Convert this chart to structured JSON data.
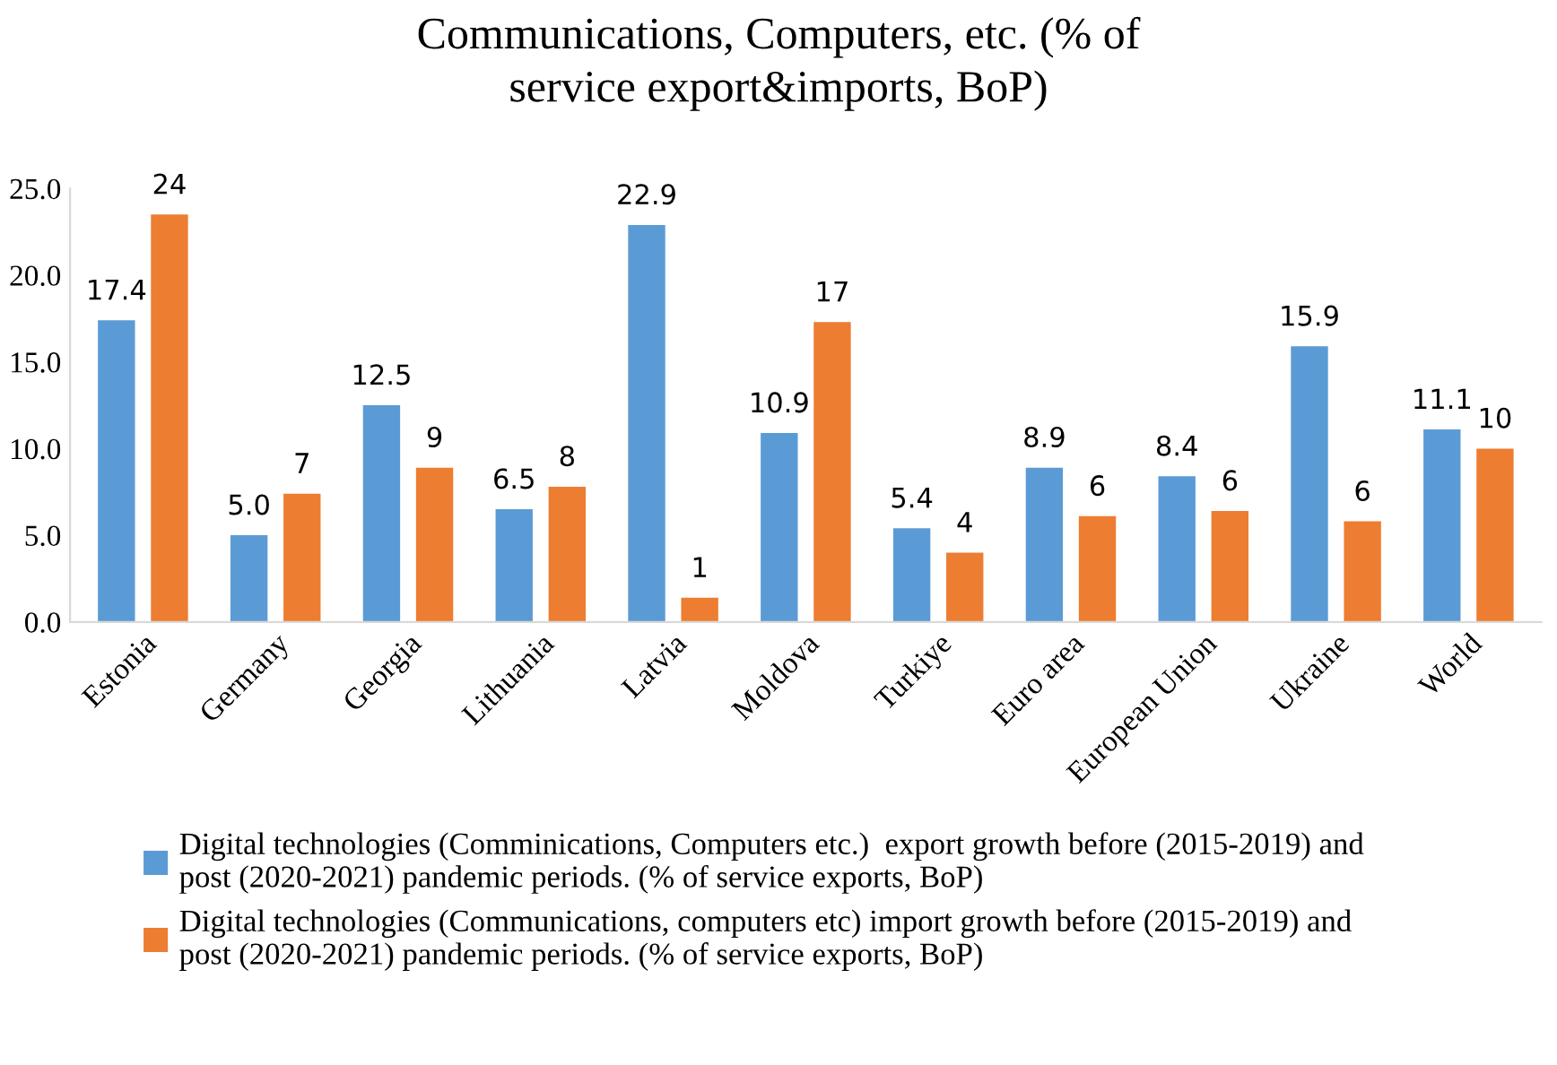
{
  "chart_data": {
    "type": "bar",
    "title": "Communications, Computers, etc. (% of service export&imports, BoP)",
    "categories": [
      "Estonia",
      "Germany",
      "Georgia",
      "Lithuania",
      "Latvia",
      "Moldova",
      "Turkiye",
      "Euro area",
      "European Union",
      "Ukraine",
      "World"
    ],
    "series": [
      {
        "name": "Digital technologies (Comminications, Computers etc.)  export growth before (2015-2019) and post (2020-2021) pandemic periods. (% of service exports, BoP)",
        "color": "#5b9bd5",
        "values": [
          17.4,
          5.0,
          12.5,
          6.5,
          22.9,
          10.9,
          5.4,
          8.9,
          8.4,
          15.9,
          11.1
        ],
        "value_labels": [
          "17.4",
          "5.0",
          "12.5",
          "6.5",
          "22.9",
          "10.9",
          "5.4",
          "8.9",
          "8.4",
          "15.9",
          "11.1"
        ]
      },
      {
        "name": "Digital technologies (Communications, computers etc) import growth before (2015-2019) and post (2020-2021) pandemic periods. (% of service exports, BoP)",
        "color": "#ed7d31",
        "values": [
          23.5,
          7.4,
          8.9,
          7.8,
          1.4,
          17.3,
          4.0,
          6.1,
          6.4,
          5.8,
          10.0
        ],
        "value_labels": [
          "24",
          "7",
          "9",
          "8",
          "1",
          "17",
          "4",
          "6",
          "6",
          "6",
          "10"
        ]
      }
    ],
    "ylim": [
      0,
      25
    ],
    "yticks": [
      {
        "value": 0,
        "label": "0.0"
      },
      {
        "value": 5,
        "label": "5.0"
      },
      {
        "value": 10,
        "label": "10.0"
      },
      {
        "value": 15,
        "label": "15.0"
      },
      {
        "value": 20,
        "label": "20.0"
      },
      {
        "value": 25,
        "label": "25.0"
      }
    ],
    "grid": false,
    "legend": "bottom"
  }
}
